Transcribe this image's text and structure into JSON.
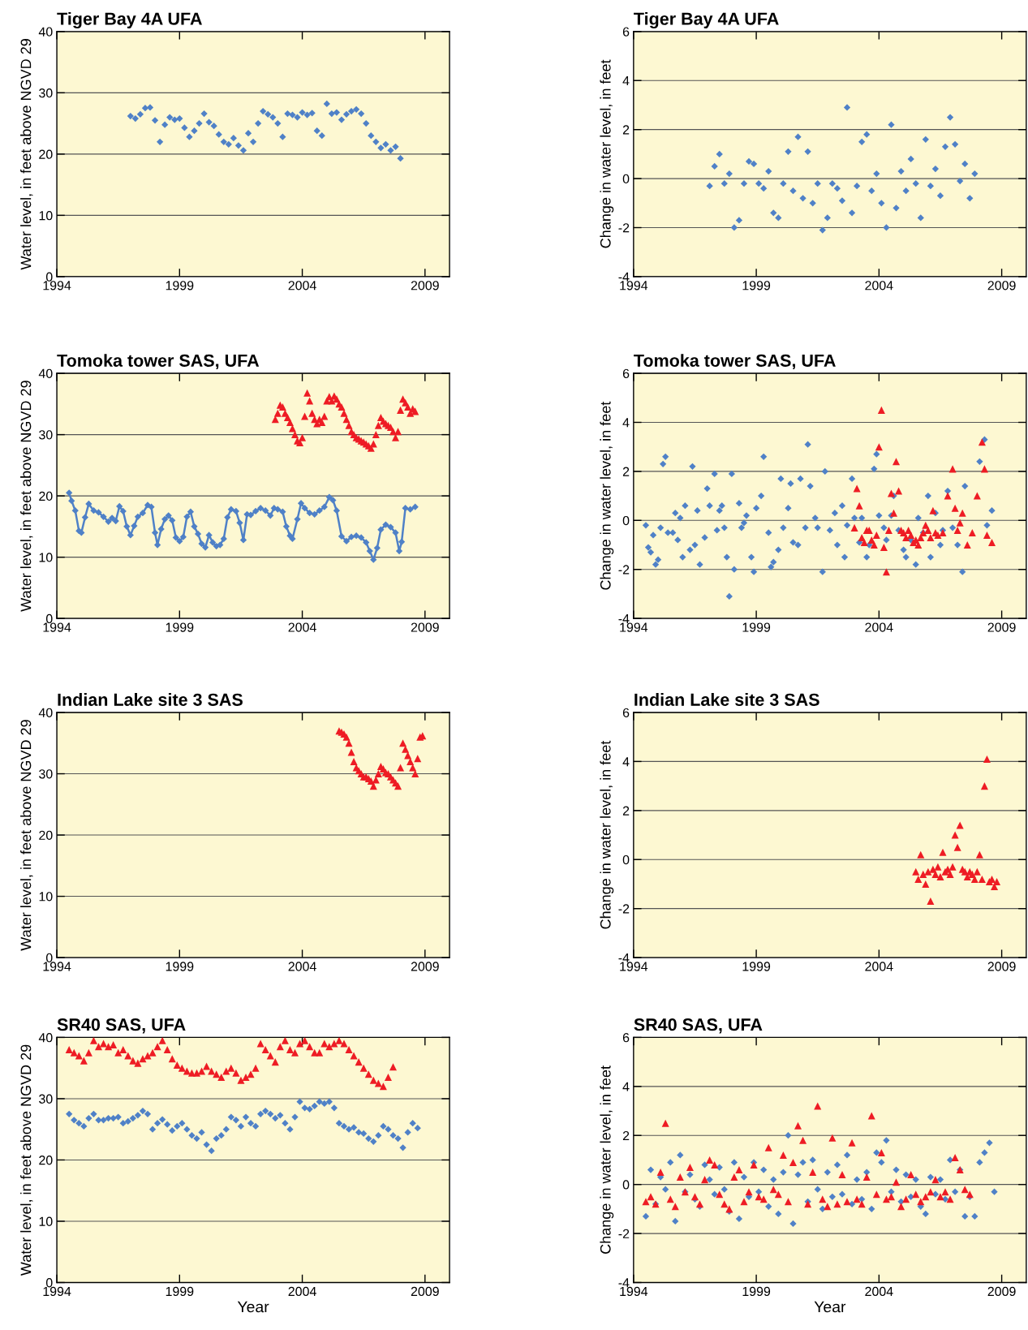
{
  "chart_data": [
    {
      "type": "scatter",
      "title": "Tiger Bay 4A UFA",
      "ylabel": "Water level, in feet above NGVD 29",
      "xlim": [
        1994,
        2010
      ],
      "xticks": [
        1994,
        1999,
        2004,
        2009
      ],
      "ylim": [
        0,
        40
      ],
      "yticks": [
        0,
        10,
        20,
        30,
        40
      ],
      "grid": "y",
      "series": [
        {
          "color": "#4f81c7",
          "marker": "diamond",
          "x": [
            1997.0,
            1997.2,
            1997.4,
            1997.6,
            1997.8,
            1998.0,
            1998.2,
            1998.4,
            1998.6,
            1998.8,
            1999.0,
            1999.2,
            1999.4,
            1999.6,
            1999.8,
            2000.0,
            2000.2,
            2000.4,
            2000.6,
            2000.8,
            2001.0,
            2001.2,
            2001.4,
            2001.6,
            2001.8,
            2002.0,
            2002.2,
            2002.4,
            2002.6,
            2002.8,
            2003.0,
            2003.2,
            2003.4,
            2003.6,
            2003.8,
            2004.0,
            2004.2,
            2004.4,
            2004.6,
            2004.8,
            2005.0,
            2005.2,
            2005.4,
            2005.6,
            2005.8,
            2006.0,
            2006.2,
            2006.4,
            2006.6,
            2006.8,
            2007.0,
            2007.2,
            2007.4,
            2007.6,
            2007.8,
            2008.0
          ],
          "values": [
            26.2,
            25.8,
            26.5,
            27.5,
            27.6,
            25.5,
            22,
            24.8,
            26,
            25.6,
            25.8,
            24.3,
            22.8,
            23.8,
            25,
            26.6,
            25.2,
            24.6,
            23.2,
            22,
            21.6,
            22.6,
            21.4,
            20.6,
            23.4,
            22,
            25,
            27,
            26.5,
            26,
            25,
            22.8,
            26.6,
            26.4,
            26,
            26.8,
            26.4,
            26.7,
            23.8,
            23,
            28.2,
            26.6,
            26.8,
            25.6,
            26.5,
            27,
            27.3,
            26.6,
            25,
            23,
            22,
            21,
            21.6,
            20.6,
            21.2,
            19.3
          ]
        }
      ]
    },
    {
      "type": "scatter",
      "title": "Tiger Bay 4A UFA",
      "ylabel": "Change in water level, in feet",
      "xlim": [
        1994,
        2010
      ],
      "xticks": [
        1994,
        1999,
        2004,
        2009
      ],
      "ylim": [
        -4,
        6
      ],
      "yticks": [
        -4,
        -2,
        0,
        2,
        4,
        6
      ],
      "grid": "y",
      "series": [
        {
          "color": "#4f81c7",
          "marker": "diamond",
          "x": [
            1997.1,
            1997.3,
            1997.5,
            1997.7,
            1997.9,
            1998.1,
            1998.3,
            1998.5,
            1998.7,
            1998.9,
            1999.1,
            1999.3,
            1999.5,
            1999.7,
            1999.9,
            2000.1,
            2000.3,
            2000.5,
            2000.7,
            2000.9,
            2001.1,
            2001.3,
            2001.5,
            2001.7,
            2001.9,
            2002.1,
            2002.3,
            2002.5,
            2002.7,
            2002.9,
            2003.1,
            2003.3,
            2003.5,
            2003.7,
            2003.9,
            2004.1,
            2004.3,
            2004.5,
            2004.7,
            2004.9,
            2005.1,
            2005.3,
            2005.5,
            2005.7,
            2005.9,
            2006.1,
            2006.3,
            2006.5,
            2006.7,
            2006.9,
            2007.1,
            2007.3,
            2007.5,
            2007.7,
            2007.9
          ],
          "values": [
            -0.3,
            0.5,
            1.0,
            -0.2,
            0.2,
            -2.0,
            -1.7,
            -0.2,
            0.7,
            0.6,
            -0.2,
            -0.4,
            0.3,
            -1.4,
            -1.6,
            -0.2,
            1.1,
            -0.5,
            1.7,
            -0.8,
            1.1,
            -1.0,
            -0.2,
            -2.1,
            -1.6,
            -0.2,
            -0.4,
            -0.9,
            2.9,
            -1.4,
            -0.3,
            1.5,
            1.8,
            -0.5,
            0.2,
            -1.0,
            -2.0,
            2.2,
            -1.2,
            0.3,
            -0.5,
            0.8,
            -0.2,
            -1.6,
            1.6,
            -0.3,
            0.4,
            -0.7,
            1.3,
            2.5,
            1.4,
            -0.1,
            0.6,
            -0.8,
            0.2
          ]
        }
      ]
    },
    {
      "type": "scatter",
      "title": "Tomoka tower SAS, UFA",
      "ylabel": "Water level, in feet above NGVD 29",
      "xlim": [
        1994,
        2010
      ],
      "xticks": [
        1994,
        1999,
        2004,
        2009
      ],
      "ylim": [
        0,
        40
      ],
      "yticks": [
        0,
        10,
        20,
        30,
        40
      ],
      "grid": "y",
      "series": [
        {
          "type": "line",
          "color": "#4f81c7",
          "marker": "diamond",
          "x": [
            1994.5,
            1994.6,
            1994.75,
            1994.9,
            1995.0,
            1995.15,
            1995.3,
            1995.5,
            1995.7,
            1995.9,
            1996.1,
            1996.25,
            1996.4,
            1996.55,
            1996.7,
            1996.85,
            1997.0,
            1997.15,
            1997.3,
            1997.5,
            1997.7,
            1997.85,
            1998.0,
            1998.1,
            1998.25,
            1998.4,
            1998.55,
            1998.7,
            1998.85,
            1999.0,
            1999.15,
            1999.3,
            1999.45,
            1999.6,
            1999.75,
            1999.9,
            2000.05,
            2000.2,
            2000.35,
            2000.5,
            2000.65,
            2000.8,
            2000.95,
            2001.1,
            2001.3,
            2001.45,
            2001.6,
            2001.75,
            2001.9,
            2002.1,
            2002.3,
            2002.5,
            2002.7,
            2002.85,
            2003.0,
            2003.2,
            2003.35,
            2003.5,
            2003.6,
            2003.8,
            2003.95,
            2004.1,
            2004.3,
            2004.5,
            2004.7,
            2004.9,
            2005.1,
            2005.25,
            2005.4,
            2005.6,
            2005.8,
            2006.0,
            2006.2,
            2006.4,
            2006.6,
            2006.75,
            2006.9,
            2007.05,
            2007.2,
            2007.4,
            2007.6,
            2007.8,
            2007.95,
            2008.05,
            2008.2,
            2008.4,
            2008.6
          ],
          "values": [
            20.5,
            19.2,
            17.6,
            14.3,
            14.0,
            16.5,
            18.7,
            17.6,
            17.3,
            16.6,
            15.8,
            16.4,
            15.9,
            18.3,
            17.5,
            15.0,
            13.6,
            15.1,
            16.6,
            17.2,
            18.5,
            18.2,
            14.0,
            12.0,
            14.6,
            16.2,
            16.8,
            16.0,
            13.2,
            12.6,
            13.3,
            16.6,
            17.4,
            15.0,
            13.8,
            12.2,
            11.6,
            13.6,
            12.4,
            11.8,
            12.0,
            13.0,
            16.5,
            17.8,
            17.5,
            15.6,
            12.8,
            17.0,
            16.9,
            17.5,
            18.0,
            17.6,
            16.8,
            18.0,
            17.8,
            17.4,
            15.0,
            13.5,
            13.0,
            16.2,
            18.8,
            18.0,
            17.2,
            17.0,
            17.6,
            18.2,
            19.8,
            19.3,
            17.6,
            13.4,
            12.6,
            13.3,
            13.5,
            13.2,
            12.4,
            11.0,
            9.6,
            11.5,
            14.5,
            15.3,
            14.9,
            14.0,
            11.0,
            12.5,
            18.0,
            17.8,
            18.2
          ]
        },
        {
          "color": "#ee1c24",
          "marker": "triangle",
          "x": [
            2002.9,
            2003.0,
            2003.1,
            2003.2,
            2003.3,
            2003.4,
            2003.5,
            2003.6,
            2003.7,
            2003.8,
            2003.9,
            2004.0,
            2004.1,
            2004.2,
            2004.3,
            2004.4,
            2004.5,
            2004.6,
            2004.7,
            2004.8,
            2004.9,
            2005.0,
            2005.1,
            2005.2,
            2005.3,
            2005.4,
            2005.5,
            2005.6,
            2005.7,
            2005.8,
            2005.9,
            2006.0,
            2006.1,
            2006.2,
            2006.3,
            2006.4,
            2006.5,
            2006.6,
            2006.7,
            2006.8,
            2006.9,
            2007.0,
            2007.1,
            2007.2,
            2007.3,
            2007.4,
            2007.5,
            2007.6,
            2007.7,
            2007.8,
            2007.9,
            2008.0,
            2008.1,
            2008.2,
            2008.3,
            2008.4,
            2008.5,
            2008.6
          ],
          "values": [
            32.5,
            33.5,
            34.8,
            34.5,
            33.5,
            32.8,
            32,
            31,
            30,
            29,
            28.7,
            29.5,
            33,
            36.8,
            35.5,
            33.5,
            32.5,
            31.8,
            32.5,
            32,
            33,
            35.5,
            36.2,
            35.5,
            36.3,
            35.8,
            35,
            34.5,
            33.5,
            32.5,
            31.5,
            30.5,
            30,
            29.5,
            29.3,
            29,
            28.8,
            28.5,
            28.2,
            27.8,
            28.5,
            30,
            31.5,
            32.8,
            32.2,
            31.8,
            31.5,
            31.2,
            30.5,
            29.5,
            30.5,
            34,
            35.8,
            35.2,
            34.5,
            33.5,
            34.2,
            33.8
          ]
        }
      ]
    },
    {
      "type": "scatter",
      "title": "Tomoka tower SAS, UFA",
      "ylabel": "Change in water level, in feet",
      "xlim": [
        1994,
        2010
      ],
      "xticks": [
        1994,
        1999,
        2004,
        2009
      ],
      "ylim": [
        -4,
        6
      ],
      "yticks": [
        -4,
        -2,
        0,
        2,
        4,
        6
      ],
      "grid": "y",
      "series": [
        {
          "color": "#4f81c7",
          "marker": "diamond",
          "x": [
            1994.5,
            1994.6,
            1994.7,
            1994.8,
            1994.9,
            1995.0,
            1995.1,
            1995.2,
            1995.3,
            1995.4,
            1995.6,
            1995.7,
            1995.8,
            1995.9,
            1996.0,
            1996.1,
            1996.3,
            1996.4,
            1996.5,
            1996.6,
            1996.7,
            1996.9,
            1997.0,
            1997.1,
            1997.3,
            1997.4,
            1997.5,
            1997.6,
            1997.7,
            1997.8,
            1997.9,
            1998.0,
            1998.1,
            1998.3,
            1998.4,
            1998.5,
            1998.6,
            1998.8,
            1998.9,
            1999.0,
            1999.2,
            1999.3,
            1999.5,
            1999.6,
            1999.7,
            1999.9,
            2000.0,
            2000.1,
            2000.3,
            2000.4,
            2000.5,
            2000.7,
            2000.8,
            2001.0,
            2001.1,
            2001.2,
            2001.4,
            2001.5,
            2001.7,
            2001.8,
            2002.0,
            2002.2,
            2002.3,
            2002.5,
            2002.6,
            2002.7,
            2002.9,
            2003.0,
            2003.2,
            2003.3,
            2003.5,
            2003.6,
            2003.8,
            2003.9,
            2004.0,
            2004.2,
            2004.3,
            2004.5,
            2004.6,
            2004.8,
            2005.0,
            2005.1,
            2005.3,
            2005.5,
            2005.6,
            2005.8,
            2006.0,
            2006.1,
            2006.3,
            2006.5,
            2006.6,
            2006.8,
            2007.0,
            2007.2,
            2007.4,
            2007.5,
            2008.1,
            2008.3,
            2008.4,
            2008.6
          ],
          "values": [
            -0.2,
            -1.1,
            -1.3,
            -0.6,
            -1.8,
            -1.6,
            -0.3,
            2.3,
            2.6,
            -0.5,
            -0.5,
            0.3,
            -0.8,
            0.1,
            -1.5,
            0.6,
            -1.2,
            2.2,
            -1.0,
            0.4,
            -1.8,
            -0.7,
            1.3,
            0.6,
            1.9,
            -0.4,
            0.4,
            0.6,
            -0.3,
            -1.5,
            -3.1,
            1.9,
            -2.0,
            0.7,
            -0.3,
            -0.1,
            0.2,
            -1.5,
            -2.1,
            0.5,
            1.0,
            2.6,
            -0.5,
            -1.9,
            -1.7,
            -1.2,
            1.7,
            -0.3,
            0.5,
            1.5,
            -0.9,
            -1.0,
            1.7,
            -0.3,
            3.1,
            1.4,
            0.1,
            -0.3,
            -2.1,
            2.0,
            -0.4,
            0.3,
            -1.0,
            0.6,
            -1.5,
            -0.2,
            1.7,
            0.1,
            -0.9,
            0.1,
            -1.5,
            -1.0,
            2.1,
            2.7,
            0.2,
            -0.3,
            -0.8,
            0.2,
            1.0,
            -0.4,
            -1.2,
            -1.5,
            -0.8,
            -1.8,
            0.1,
            -0.5,
            1.0,
            -1.5,
            0.3,
            -1.0,
            -0.4,
            1.2,
            -0.3,
            -1.0,
            -2.1,
            1.4,
            2.4,
            3.3,
            -0.2,
            0.4
          ]
        },
        {
          "color": "#ee1c24",
          "marker": "triangle",
          "x": [
            2003.0,
            2003.1,
            2003.2,
            2003.3,
            2003.4,
            2003.5,
            2003.6,
            2003.7,
            2003.8,
            2003.9,
            2004.0,
            2004.1,
            2004.2,
            2004.3,
            2004.4,
            2004.5,
            2004.6,
            2004.7,
            2004.8,
            2004.9,
            2005.0,
            2005.1,
            2005.2,
            2005.3,
            2005.4,
            2005.5,
            2005.6,
            2005.7,
            2005.8,
            2005.9,
            2006.0,
            2006.1,
            2006.2,
            2006.3,
            2006.4,
            2006.6,
            2006.8,
            2007.0,
            2007.1,
            2007.2,
            2007.3,
            2007.4,
            2007.6,
            2007.8,
            2008.0,
            2008.2,
            2008.3,
            2008.4,
            2008.6
          ],
          "values": [
            -0.3,
            1.3,
            0.6,
            -0.7,
            -0.9,
            -0.4,
            -0.4,
            -0.8,
            -1.0,
            -0.6,
            3.0,
            4.5,
            -1.1,
            -2.1,
            -0.4,
            1.1,
            0.3,
            2.4,
            1.2,
            -0.4,
            -0.5,
            -0.7,
            -0.4,
            -0.6,
            -0.9,
            -0.8,
            -1.0,
            -0.7,
            -0.5,
            -0.2,
            -0.4,
            -0.7,
            0.4,
            -0.5,
            -0.6,
            -0.5,
            1.0,
            2.1,
            0.5,
            -0.4,
            -0.1,
            0.3,
            -1.0,
            -0.5,
            1.0,
            3.2,
            2.1,
            -0.6,
            -0.9
          ]
        }
      ]
    },
    {
      "type": "scatter",
      "title": "Indian Lake site 3 SAS",
      "ylabel": "Water level, in feet above NGVD 29",
      "xlim": [
        1994,
        2010
      ],
      "xticks": [
        1994,
        1999,
        2004,
        2009
      ],
      "ylim": [
        0,
        40
      ],
      "yticks": [
        0,
        10,
        20,
        30,
        40
      ],
      "grid": "y",
      "series": [
        {
          "color": "#ee1c24",
          "marker": "triangle",
          "x": [
            2005.5,
            2005.6,
            2005.7,
            2005.8,
            2005.9,
            2006.0,
            2006.1,
            2006.2,
            2006.3,
            2006.4,
            2006.5,
            2006.6,
            2006.7,
            2006.8,
            2006.9,
            2007.0,
            2007.1,
            2007.2,
            2007.3,
            2007.4,
            2007.5,
            2007.6,
            2007.7,
            2007.8,
            2007.9,
            2008.0,
            2008.1,
            2008.2,
            2008.3,
            2008.4,
            2008.5,
            2008.6,
            2008.7,
            2008.8,
            2008.9
          ],
          "values": [
            37,
            36.8,
            36.5,
            36,
            35,
            33.5,
            32,
            31,
            30.5,
            30,
            29.5,
            29.5,
            29.2,
            28.8,
            28,
            29,
            30,
            31.2,
            30.8,
            30.2,
            30,
            29.5,
            29,
            28.5,
            28,
            31,
            35,
            34,
            33,
            32,
            31,
            30,
            32.5,
            36,
            36.2
          ]
        }
      ]
    },
    {
      "type": "scatter",
      "title": "Indian Lake site 3 SAS",
      "ylabel": "Change in water level, in feet",
      "xlim": [
        1994,
        2010
      ],
      "xticks": [
        1994,
        1999,
        2004,
        2009
      ],
      "ylim": [
        -4,
        6
      ],
      "yticks": [
        -4,
        -2,
        0,
        2,
        4,
        6
      ],
      "grid": "y",
      "series": [
        {
          "color": "#ee1c24",
          "marker": "triangle",
          "x": [
            2005.5,
            2005.6,
            2005.7,
            2005.8,
            2005.9,
            2006.0,
            2006.1,
            2006.2,
            2006.3,
            2006.4,
            2006.5,
            2006.6,
            2006.7,
            2006.8,
            2006.9,
            2007.0,
            2007.1,
            2007.2,
            2007.3,
            2007.4,
            2007.5,
            2007.6,
            2007.7,
            2007.8,
            2007.9,
            2008.0,
            2008.1,
            2008.2,
            2008.3,
            2008.4,
            2008.5,
            2008.6,
            2008.7,
            2008.8
          ],
          "values": [
            -0.5,
            -0.8,
            0.2,
            -0.6,
            -1.0,
            -0.5,
            -1.7,
            -0.4,
            -0.6,
            -0.3,
            -0.7,
            0.3,
            -0.5,
            -0.4,
            -0.6,
            -0.3,
            1.0,
            0.5,
            1.4,
            -0.4,
            -0.5,
            -0.7,
            -0.5,
            -0.6,
            -0.8,
            -0.5,
            0.2,
            -0.8,
            3.0,
            4.1,
            -0.9,
            -0.8,
            -1.1,
            -0.9
          ]
        }
      ]
    },
    {
      "type": "scatter",
      "title": "SR40 SAS, UFA",
      "xlabel": "Year",
      "ylabel": "Water level, in feet above NGVD 29",
      "xlim": [
        1994,
        2010
      ],
      "xticks": [
        1994,
        1999,
        2004,
        2009
      ],
      "ylim": [
        0,
        40
      ],
      "yticks": [
        0,
        10,
        20,
        30,
        40
      ],
      "grid": "y",
      "series": [
        {
          "color": "#4f81c7",
          "marker": "diamond",
          "x": [
            1994.5,
            1994.7,
            1994.9,
            1995.1,
            1995.3,
            1995.5,
            1995.7,
            1995.9,
            1996.1,
            1996.3,
            1996.5,
            1996.7,
            1996.9,
            1997.1,
            1997.3,
            1997.5,
            1997.7,
            1997.9,
            1998.1,
            1998.3,
            1998.5,
            1998.7,
            1998.9,
            1999.1,
            1999.3,
            1999.5,
            1999.7,
            1999.9,
            2000.1,
            2000.3,
            2000.5,
            2000.7,
            2000.9,
            2001.1,
            2001.3,
            2001.5,
            2001.7,
            2001.9,
            2002.1,
            2002.3,
            2002.5,
            2002.7,
            2002.9,
            2003.1,
            2003.3,
            2003.5,
            2003.7,
            2003.9,
            2004.1,
            2004.3,
            2004.5,
            2004.7,
            2004.9,
            2005.1,
            2005.3,
            2005.5,
            2005.7,
            2005.9,
            2006.1,
            2006.3,
            2006.5,
            2006.7,
            2006.9,
            2007.1,
            2007.3,
            2007.5,
            2007.7,
            2007.9,
            2008.1,
            2008.3,
            2008.5,
            2008.7
          ],
          "values": [
            27.5,
            26.5,
            26,
            25.5,
            26.8,
            27.5,
            26.5,
            26.5,
            26.8,
            26.8,
            27,
            26,
            26.3,
            26.8,
            27.3,
            28,
            27.5,
            25,
            26,
            26.6,
            25.8,
            24.8,
            25.5,
            26,
            25,
            24,
            23.5,
            24.5,
            22.5,
            21.5,
            23.5,
            24,
            25,
            27,
            26.5,
            25.5,
            27,
            26,
            25.5,
            27.5,
            28,
            27.5,
            26.8,
            27.3,
            26,
            25,
            27,
            29.5,
            28.5,
            28.3,
            28.8,
            29.5,
            29.2,
            29.5,
            28.5,
            26,
            25.5,
            25,
            25.3,
            24.5,
            24.3,
            23.5,
            23,
            24,
            25.5,
            25,
            24,
            23.5,
            22,
            24.5,
            26,
            25.2
          ]
        },
        {
          "color": "#ee1c24",
          "marker": "triangle",
          "x": [
            1994.5,
            1994.7,
            1994.9,
            1995.1,
            1995.3,
            1995.5,
            1995.7,
            1995.9,
            1996.1,
            1996.3,
            1996.5,
            1996.7,
            1996.9,
            1997.1,
            1997.3,
            1997.5,
            1997.7,
            1997.9,
            1998.1,
            1998.3,
            1998.5,
            1998.7,
            1998.9,
            1999.1,
            1999.3,
            1999.5,
            1999.7,
            1999.9,
            2000.1,
            2000.3,
            2000.5,
            2000.7,
            2000.9,
            2001.1,
            2001.3,
            2001.5,
            2001.7,
            2001.9,
            2002.1,
            2002.3,
            2002.5,
            2002.7,
            2002.9,
            2003.1,
            2003.3,
            2003.5,
            2003.7,
            2003.9,
            2004.1,
            2004.3,
            2004.5,
            2004.7,
            2004.9,
            2005.1,
            2005.3,
            2005.5,
            2005.7,
            2005.9,
            2006.1,
            2006.3,
            2006.5,
            2006.7,
            2006.9,
            2007.1,
            2007.3,
            2007.5,
            2007.7
          ],
          "values": [
            38,
            37.5,
            37,
            36.2,
            37.5,
            39.5,
            38.5,
            39,
            38.5,
            38.8,
            37.5,
            38,
            37,
            36.2,
            35.8,
            36.5,
            37,
            37.5,
            38.5,
            39.5,
            38,
            36.5,
            35.5,
            35,
            34.5,
            34.2,
            34.2,
            34.5,
            35.3,
            34.5,
            34,
            33.5,
            34.5,
            35,
            34.2,
            33,
            33.5,
            34,
            35,
            39,
            38,
            37,
            36,
            38.5,
            39.5,
            38,
            37.5,
            39,
            39.5,
            38.5,
            37.5,
            37.5,
            39,
            38.5,
            39,
            39.5,
            39,
            38,
            37,
            36,
            35,
            34,
            33,
            32.5,
            32,
            33.5,
            35.2
          ]
        }
      ]
    },
    {
      "type": "scatter",
      "title": "SR40 SAS, UFA",
      "xlabel": "Year",
      "ylabel": "Change in water level, in feet",
      "xlim": [
        1994,
        2010
      ],
      "xticks": [
        1994,
        1999,
        2004,
        2009
      ],
      "ylim": [
        -4,
        6
      ],
      "yticks": [
        -4,
        -2,
        0,
        2,
        4,
        6
      ],
      "grid": "y",
      "series": [
        {
          "color": "#4f81c7",
          "marker": "diamond",
          "x": [
            1994.5,
            1994.7,
            1994.9,
            1995.1,
            1995.3,
            1995.5,
            1995.7,
            1995.9,
            1996.1,
            1996.3,
            1996.5,
            1996.7,
            1996.9,
            1997.1,
            1997.3,
            1997.5,
            1997.7,
            1997.9,
            1998.1,
            1998.3,
            1998.5,
            1998.7,
            1998.9,
            1999.1,
            1999.3,
            1999.5,
            1999.7,
            1999.9,
            2000.1,
            2000.3,
            2000.5,
            2000.7,
            2000.9,
            2001.1,
            2001.3,
            2001.5,
            2001.7,
            2001.9,
            2002.1,
            2002.3,
            2002.5,
            2002.7,
            2002.9,
            2003.1,
            2003.3,
            2003.5,
            2003.7,
            2003.9,
            2004.1,
            2004.3,
            2004.5,
            2004.7,
            2004.9,
            2005.1,
            2005.3,
            2005.5,
            2005.7,
            2005.9,
            2006.1,
            2006.3,
            2006.5,
            2006.7,
            2006.9,
            2007.1,
            2007.3,
            2007.5,
            2007.7,
            2007.9,
            2008.1,
            2008.3,
            2008.5,
            2008.7
          ],
          "values": [
            -1.3,
            0.6,
            -0.8,
            0.3,
            -0.2,
            0.9,
            -1.5,
            1.2,
            -0.3,
            0.4,
            -0.6,
            -0.9,
            0.8,
            0.2,
            -0.4,
            0.7,
            -0.2,
            -1.1,
            0.9,
            -1.4,
            0.3,
            -0.5,
            0.9,
            -0.3,
            0.6,
            -0.9,
            0.2,
            -1.2,
            0.5,
            2.0,
            -1.6,
            0.4,
            0.9,
            -0.7,
            1.0,
            -0.2,
            -1.0,
            0.5,
            -0.5,
            0.8,
            -0.4,
            1.2,
            -0.8,
            0.2,
            -0.6,
            0.5,
            -1.0,
            1.3,
            0.9,
            1.8,
            -0.3,
            0.6,
            -0.7,
            0.4,
            -0.5,
            0.2,
            -0.9,
            -1.2,
            0.3,
            -0.4,
            0.2,
            -0.6,
            1.0,
            -0.3,
            0.6,
            -1.3,
            -0.5,
            -1.3,
            0.9,
            1.3,
            1.7,
            -0.3
          ]
        },
        {
          "color": "#ee1c24",
          "marker": "triangle",
          "x": [
            1994.5,
            1994.7,
            1994.9,
            1995.1,
            1995.3,
            1995.5,
            1995.7,
            1995.9,
            1996.1,
            1996.3,
            1996.5,
            1996.7,
            1996.9,
            1997.1,
            1997.3,
            1997.5,
            1997.7,
            1997.9,
            1998.1,
            1998.3,
            1998.5,
            1998.7,
            1998.9,
            1999.1,
            1999.3,
            1999.5,
            1999.7,
            1999.9,
            2000.1,
            2000.3,
            2000.5,
            2000.7,
            2000.9,
            2001.1,
            2001.3,
            2001.5,
            2001.7,
            2001.9,
            2002.1,
            2002.3,
            2002.5,
            2002.7,
            2002.9,
            2003.1,
            2003.3,
            2003.5,
            2003.7,
            2003.9,
            2004.1,
            2004.3,
            2004.5,
            2004.7,
            2004.9,
            2005.1,
            2005.3,
            2005.5,
            2005.7,
            2005.9,
            2006.1,
            2006.3,
            2006.5,
            2006.7,
            2006.9,
            2007.1,
            2007.3,
            2007.5,
            2007.7
          ],
          "values": [
            -0.7,
            -0.5,
            -0.8,
            0.5,
            2.5,
            -0.6,
            -0.9,
            0.3,
            -0.3,
            0.7,
            -0.5,
            -0.8,
            0.2,
            1.0,
            0.8,
            -0.4,
            -0.8,
            -1.0,
            0.3,
            0.6,
            -0.7,
            -0.3,
            0.8,
            -0.5,
            -0.6,
            1.5,
            -0.2,
            -0.4,
            1.2,
            -0.7,
            0.9,
            2.4,
            1.8,
            -0.8,
            0.5,
            3.2,
            -0.6,
            -0.9,
            1.9,
            -0.8,
            0.4,
            -0.7,
            1.7,
            -0.6,
            -0.8,
            0.3,
            2.8,
            -0.4,
            1.3,
            -0.6,
            -0.5,
            0.1,
            -0.9,
            -0.6,
            0.4,
            -0.4,
            -0.7,
            -0.5,
            -0.3,
            0.2,
            -0.5,
            -0.3,
            -0.6,
            1.1,
            0.6,
            -0.2,
            -0.4
          ]
        }
      ]
    }
  ]
}
